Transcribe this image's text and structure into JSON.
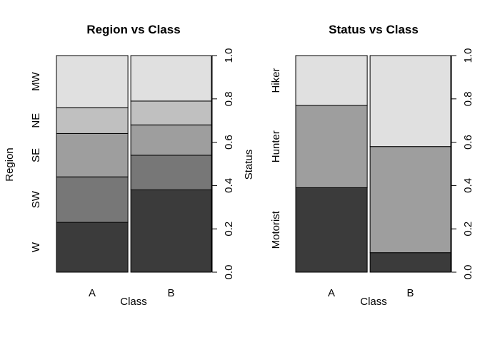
{
  "chart_data": [
    {
      "type": "spineplot",
      "title": "Region vs Class",
      "xlabel": "Class",
      "ylabel": "Region",
      "right_axis_label": "Status",
      "right_axis_ticks": [
        "0.0",
        "0.2",
        "0.4",
        "0.6",
        "0.8",
        "1.0"
      ],
      "categories": [
        "A",
        "B"
      ],
      "category_widths": [
        0.47,
        0.53
      ],
      "series": [
        {
          "name": "W",
          "values": [
            0.23,
            0.38
          ],
          "color": "#3b3b3b"
        },
        {
          "name": "SW",
          "values": [
            0.21,
            0.16
          ],
          "color": "#777777"
        },
        {
          "name": "SE",
          "values": [
            0.2,
            0.14
          ],
          "color": "#9e9e9e"
        },
        {
          "name": "NE",
          "values": [
            0.12,
            0.11
          ],
          "color": "#c0c0c0"
        },
        {
          "name": "MW",
          "values": [
            0.24,
            0.21
          ],
          "color": "#e0e0e0"
        }
      ],
      "ylim": [
        0,
        1
      ]
    },
    {
      "type": "spineplot",
      "title": "Status vs Class",
      "xlabel": "Class",
      "ylabel": "Status",
      "right_axis_label": "",
      "right_axis_ticks": [
        "0.0",
        "0.2",
        "0.4",
        "0.6",
        "0.8",
        "1.0"
      ],
      "categories": [
        "A",
        "B"
      ],
      "category_widths": [
        0.47,
        0.53
      ],
      "series": [
        {
          "name": "Motorist",
          "values": [
            0.39,
            0.09
          ],
          "color": "#3b3b3b"
        },
        {
          "name": "Hunter",
          "values": [
            0.38,
            0.49
          ],
          "color": "#9e9e9e"
        },
        {
          "name": "Hiker",
          "values": [
            0.23,
            0.42
          ],
          "color": "#e0e0e0"
        }
      ],
      "ylim": [
        0,
        1
      ]
    }
  ]
}
